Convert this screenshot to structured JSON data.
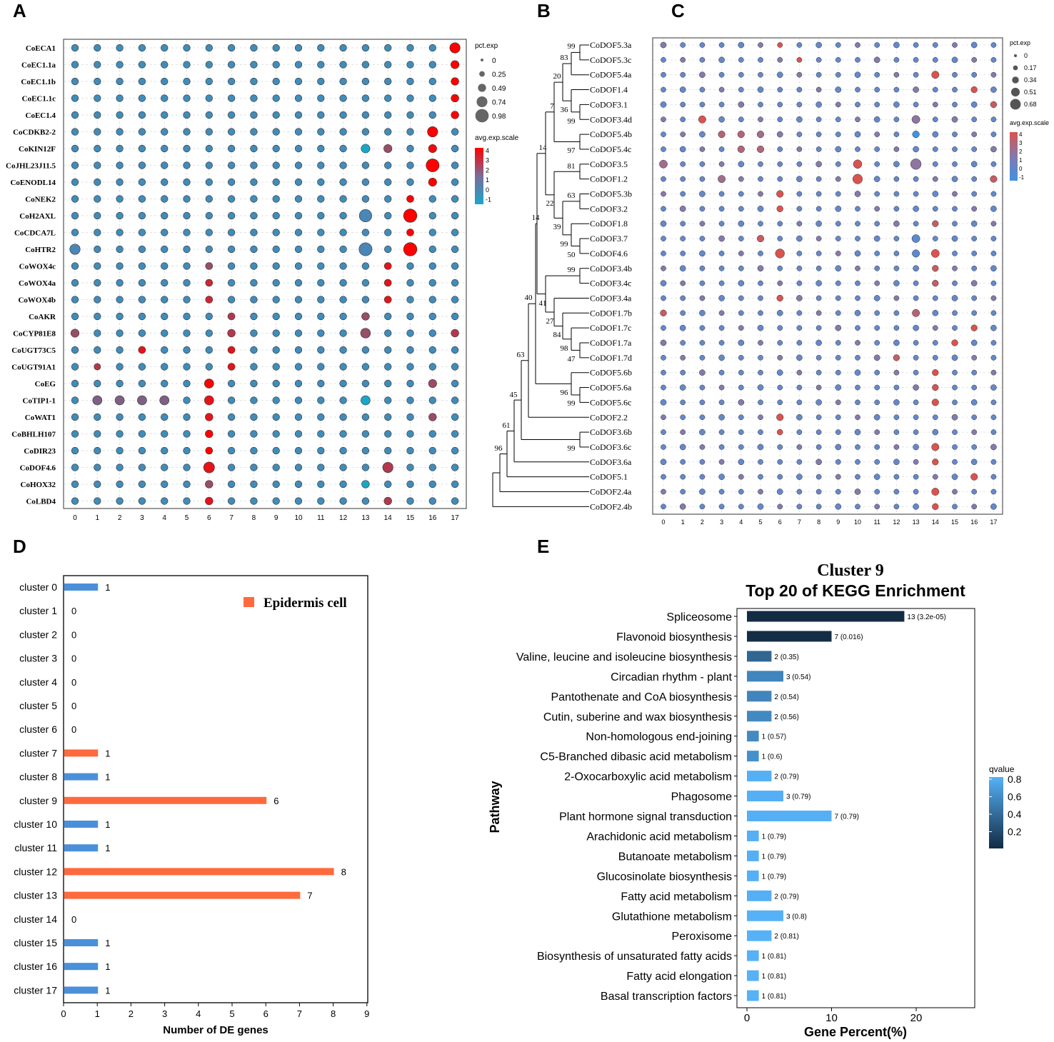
{
  "panel_labels": {
    "a": "A",
    "b": "B",
    "c": "C",
    "d": "D",
    "e": "E"
  },
  "colors": {
    "dot_low": "#1aa6c9",
    "dot_mid": "#4a86b6",
    "dot_high": "#ff0000",
    "c_low": "#3f93e0",
    "c_high": "#d9534f",
    "bar_blue": "#4a90d9",
    "bar_orange": "#ff6a3d",
    "kegg_dark": "#132b43",
    "kegg_light": "#56b1f7"
  },
  "chart_data": [
    {
      "id": "A",
      "type": "dotplot",
      "genes": [
        "CoECA1",
        "CoEC1.1a",
        "CoEC1.1b",
        "CoEC1.1c",
        "CoEC1.4",
        "CoCDKB2-2",
        "CoKIN12F",
        "CoJHL23J11.5",
        "CoENODL14",
        "CoNEK2",
        "CoH2AXL",
        "CoCDCA7L",
        "CoHTR2",
        "CoWOX4c",
        "CoWOX4a",
        "CoWOX4b",
        "CoAKR",
        "CoCYP81E8",
        "CoUGT73C5",
        "CoUGT91A1",
        "CoEG",
        "CoTIP1-1",
        "CoWAT1",
        "CoBHLH107",
        "CoDIR23",
        "CoDOF4.6",
        "CoHOX32",
        "CoLBD4"
      ],
      "clusters": [
        "0",
        "1",
        "2",
        "3",
        "4",
        "5",
        "6",
        "7",
        "8",
        "9",
        "10",
        "11",
        "12",
        "13",
        "14",
        "15",
        "16",
        "17"
      ],
      "highlights": [
        {
          "gene": 0,
          "cluster": 17,
          "exp": 4,
          "pct": 0.7
        },
        {
          "gene": 1,
          "cluster": 17,
          "exp": 4,
          "pct": 0.5
        },
        {
          "gene": 2,
          "cluster": 17,
          "exp": 4,
          "pct": 0.45
        },
        {
          "gene": 3,
          "cluster": 17,
          "exp": 4,
          "pct": 0.45
        },
        {
          "gene": 4,
          "cluster": 17,
          "exp": 4,
          "pct": 0.45
        },
        {
          "gene": 5,
          "cluster": 16,
          "exp": 4,
          "pct": 0.7
        },
        {
          "gene": 6,
          "cluster": 16,
          "exp": 3.8,
          "pct": 0.5
        },
        {
          "gene": 6,
          "cluster": 14,
          "exp": 2,
          "pct": 0.5
        },
        {
          "gene": 6,
          "cluster": 13,
          "exp": -1,
          "pct": 0.55
        },
        {
          "gene": 7,
          "cluster": 16,
          "exp": 4,
          "pct": 0.95
        },
        {
          "gene": 8,
          "cluster": 16,
          "exp": 4,
          "pct": 0.5
        },
        {
          "gene": 9,
          "cluster": 15,
          "exp": 4,
          "pct": 0.4
        },
        {
          "gene": 10,
          "cluster": 15,
          "exp": 4,
          "pct": 0.98
        },
        {
          "gene": 10,
          "cluster": 13,
          "exp": 0.5,
          "pct": 0.9
        },
        {
          "gene": 11,
          "cluster": 15,
          "exp": 4,
          "pct": 0.4
        },
        {
          "gene": 12,
          "cluster": 15,
          "exp": 4,
          "pct": 0.98
        },
        {
          "gene": 12,
          "cluster": 13,
          "exp": 0.5,
          "pct": 0.95
        },
        {
          "gene": 12,
          "cluster": 0,
          "exp": 0.5,
          "pct": 0.7
        },
        {
          "gene": 13,
          "cluster": 14,
          "exp": 3.5,
          "pct": 0.4
        },
        {
          "gene": 13,
          "cluster": 6,
          "exp": 2,
          "pct": 0.4
        },
        {
          "gene": 14,
          "cluster": 14,
          "exp": 3.5,
          "pct": 0.4
        },
        {
          "gene": 14,
          "cluster": 6,
          "exp": 3,
          "pct": 0.4
        },
        {
          "gene": 15,
          "cluster": 14,
          "exp": 3.5,
          "pct": 0.4
        },
        {
          "gene": 15,
          "cluster": 6,
          "exp": 3,
          "pct": 0.4
        },
        {
          "gene": 16,
          "cluster": 7,
          "exp": 2.5,
          "pct": 0.4
        },
        {
          "gene": 16,
          "cluster": 13,
          "exp": 2,
          "pct": 0.45
        },
        {
          "gene": 17,
          "cluster": 0,
          "exp": 2,
          "pct": 0.5
        },
        {
          "gene": 17,
          "cluster": 7,
          "exp": 2.5,
          "pct": 0.45
        },
        {
          "gene": 17,
          "cluster": 13,
          "exp": 2,
          "pct": 0.65
        },
        {
          "gene": 17,
          "cluster": 17,
          "exp": 2.5,
          "pct": 0.45
        },
        {
          "gene": 18,
          "cluster": 3,
          "exp": 3.5,
          "pct": 0.4
        },
        {
          "gene": 18,
          "cluster": 7,
          "exp": 3.5,
          "pct": 0.4
        },
        {
          "gene": 19,
          "cluster": 1,
          "exp": 2.5,
          "pct": 0.35
        },
        {
          "gene": 19,
          "cluster": 7,
          "exp": 3.5,
          "pct": 0.4
        },
        {
          "gene": 20,
          "cluster": 6,
          "exp": 4,
          "pct": 0.6
        },
        {
          "gene": 20,
          "cluster": 16,
          "exp": 2,
          "pct": 0.5
        },
        {
          "gene": 21,
          "cluster": 6,
          "exp": 3.5,
          "pct": 0.6
        },
        {
          "gene": 21,
          "cluster": 1,
          "exp": 1.5,
          "pct": 0.6
        },
        {
          "gene": 21,
          "cluster": 2,
          "exp": 1.5,
          "pct": 0.6
        },
        {
          "gene": 21,
          "cluster": 3,
          "exp": 1.5,
          "pct": 0.6
        },
        {
          "gene": 21,
          "cluster": 4,
          "exp": 1.5,
          "pct": 0.6
        },
        {
          "gene": 21,
          "cluster": 13,
          "exp": -1,
          "pct": 0.6
        },
        {
          "gene": 22,
          "cluster": 6,
          "exp": 3.5,
          "pct": 0.45
        },
        {
          "gene": 22,
          "cluster": 16,
          "exp": 2,
          "pct": 0.45
        },
        {
          "gene": 23,
          "cluster": 6,
          "exp": 4,
          "pct": 0.45
        },
        {
          "gene": 24,
          "cluster": 6,
          "exp": 4,
          "pct": 0.4
        },
        {
          "gene": 25,
          "cluster": 6,
          "exp": 3.5,
          "pct": 0.75
        },
        {
          "gene": 25,
          "cluster": 14,
          "exp": 2.5,
          "pct": 0.7
        },
        {
          "gene": 26,
          "cluster": 6,
          "exp": 2,
          "pct": 0.45
        },
        {
          "gene": 26,
          "cluster": 13,
          "exp": -1,
          "pct": 0.45
        },
        {
          "gene": 27,
          "cluster": 6,
          "exp": 3.5,
          "pct": 0.45
        },
        {
          "gene": 27,
          "cluster": 14,
          "exp": 2.5,
          "pct": 0.45
        }
      ],
      "legend": {
        "size_title": "pct.exp",
        "size_ticks": [
          "0",
          "0.25",
          "0.49",
          "0.74",
          "0.98"
        ],
        "color_title": "avg.exp.scale",
        "color_ticks": [
          "4",
          "3",
          "2",
          "1",
          "0",
          "-1"
        ]
      }
    },
    {
      "id": "B",
      "type": "tree",
      "leaves": [
        "CoDOF5.3a",
        "CoDOF5.3c",
        "CoDOF5.4a",
        "CoDOF1.4",
        "CoDOF3.1",
        "CoDOF3.4d",
        "CoDOF5.4b",
        "CoDOF5.4c",
        "CoDOF3.5",
        "CoDOF1.2",
        "CoDOF5.3b",
        "CoDOF3.2",
        "CoDOF1.8",
        "CoDOF3.7",
        "CoDOF4.6",
        "CoDOF3.4b",
        "CoDOF3.4c",
        "CoDOF3.4a",
        "CoDOF1.7b",
        "CoDOF1.7c",
        "CoDOF1.7a",
        "CoDOF1.7d",
        "CoDOF5.6b",
        "CoDOF5.6a",
        "CoDOF5.6c",
        "CoDOF2.2",
        "CoDOF3.6b",
        "CoDOF3.6c",
        "CoDOF3.6a",
        "CoDOF5.1",
        "CoDOF2.4a",
        "CoDOF2.4b"
      ],
      "bootstrap": [
        "99",
        "83",
        "20",
        "7",
        "36",
        "99",
        "97",
        "14",
        "81",
        "22",
        "63",
        "39",
        "99",
        "50",
        "14",
        "99",
        "41",
        "27",
        "84",
        "98",
        "47",
        "40",
        "96",
        "99",
        "63",
        "45",
        "61",
        "99",
        "96"
      ]
    },
    {
      "id": "C",
      "type": "dotplot",
      "clusters": [
        "0",
        "1",
        "2",
        "3",
        "4",
        "5",
        "6",
        "7",
        "8",
        "9",
        "10",
        "11",
        "12",
        "13",
        "14",
        "15",
        "16",
        "17"
      ],
      "highlights": [
        {
          "row": 0,
          "cluster": 6,
          "exp": 3.5,
          "pct": 0.2
        },
        {
          "row": 1,
          "cluster": 7,
          "exp": 3.5,
          "pct": 0.2
        },
        {
          "row": 2,
          "cluster": 14,
          "exp": 3.5,
          "pct": 0.4
        },
        {
          "row": 3,
          "cluster": 16,
          "exp": 3.5,
          "pct": 0.3
        },
        {
          "row": 4,
          "cluster": 17,
          "exp": 3,
          "pct": 0.3
        },
        {
          "row": 5,
          "cluster": 2,
          "exp": 3.5,
          "pct": 0.4
        },
        {
          "row": 5,
          "cluster": 13,
          "exp": 1.5,
          "pct": 0.45
        },
        {
          "row": 6,
          "cluster": 3,
          "exp": 2.5,
          "pct": 0.35
        },
        {
          "row": 6,
          "cluster": 4,
          "exp": 2.5,
          "pct": 0.35
        },
        {
          "row": 6,
          "cluster": 5,
          "exp": 2,
          "pct": 0.35
        },
        {
          "row": 6,
          "cluster": 13,
          "exp": -1,
          "pct": 0.35
        },
        {
          "row": 7,
          "cluster": 4,
          "exp": 2.5,
          "pct": 0.35
        },
        {
          "row": 7,
          "cluster": 5,
          "exp": 2.5,
          "pct": 0.35
        },
        {
          "row": 8,
          "cluster": 0,
          "exp": 2,
          "pct": 0.45
        },
        {
          "row": 8,
          "cluster": 10,
          "exp": 3.5,
          "pct": 0.5
        },
        {
          "row": 8,
          "cluster": 13,
          "exp": 1.5,
          "pct": 0.68
        },
        {
          "row": 9,
          "cluster": 10,
          "exp": 3.5,
          "pct": 0.6
        },
        {
          "row": 9,
          "cluster": 3,
          "exp": 2,
          "pct": 0.4
        },
        {
          "row": 9,
          "cluster": 17,
          "exp": 3,
          "pct": 0.35
        },
        {
          "row": 10,
          "cluster": 6,
          "exp": 3.5,
          "pct": 0.35
        },
        {
          "row": 11,
          "cluster": 6,
          "exp": 3.5,
          "pct": 0.3
        },
        {
          "row": 12,
          "cluster": 14,
          "exp": 3,
          "pct": 0.3
        },
        {
          "row": 13,
          "cluster": 5,
          "exp": 3,
          "pct": 0.35
        },
        {
          "row": 13,
          "cluster": 13,
          "exp": 0,
          "pct": 0.45
        },
        {
          "row": 14,
          "cluster": 6,
          "exp": 3.5,
          "pct": 0.55
        },
        {
          "row": 14,
          "cluster": 14,
          "exp": 3.5,
          "pct": 0.45
        },
        {
          "row": 14,
          "cluster": 13,
          "exp": 0,
          "pct": 0.4
        },
        {
          "row": 15,
          "cluster": 14,
          "exp": 3,
          "pct": 0.3
        },
        {
          "row": 16,
          "cluster": 14,
          "exp": 3,
          "pct": 0.3
        },
        {
          "row": 17,
          "cluster": 6,
          "exp": 3.5,
          "pct": 0.3
        },
        {
          "row": 18,
          "cluster": 0,
          "exp": 3,
          "pct": 0.3
        },
        {
          "row": 18,
          "cluster": 13,
          "exp": 2.5,
          "pct": 0.4
        },
        {
          "row": 19,
          "cluster": 16,
          "exp": 3.5,
          "pct": 0.3
        },
        {
          "row": 20,
          "cluster": 15,
          "exp": 3.5,
          "pct": 0.3
        },
        {
          "row": 21,
          "cluster": 12,
          "exp": 3,
          "pct": 0.3
        },
        {
          "row": 22,
          "cluster": 14,
          "exp": 3.5,
          "pct": 0.3
        },
        {
          "row": 23,
          "cluster": 14,
          "exp": 3.5,
          "pct": 0.3
        },
        {
          "row": 24,
          "cluster": 14,
          "exp": 3.5,
          "pct": 0.35
        },
        {
          "row": 25,
          "cluster": 6,
          "exp": 3.5,
          "pct": 0.35
        },
        {
          "row": 26,
          "cluster": 6,
          "exp": 3.5,
          "pct": 0.25
        },
        {
          "row": 27,
          "cluster": 14,
          "exp": 3.5,
          "pct": 0.4
        },
        {
          "row": 28,
          "cluster": 14,
          "exp": 3.5,
          "pct": 0.3
        },
        {
          "row": 29,
          "cluster": 16,
          "exp": 3.5,
          "pct": 0.35
        },
        {
          "row": 30,
          "cluster": 14,
          "exp": 3.5,
          "pct": 0.4
        },
        {
          "row": 31,
          "cluster": 14,
          "exp": 3.5,
          "pct": 0.3
        }
      ],
      "legend": {
        "size_title": "pct.exp",
        "size_ticks": [
          "0",
          "0.17",
          "0.34",
          "0.51",
          "0.68"
        ],
        "color_title": "avg.exp.scale",
        "color_ticks": [
          "4",
          "3",
          "2",
          "1",
          "0",
          "-1"
        ]
      }
    },
    {
      "id": "D",
      "type": "bar",
      "orientation": "horizontal",
      "categories": [
        "cluster 0",
        "cluster 1",
        "cluster 2",
        "cluster 3",
        "cluster 4",
        "cluster 5",
        "cluster 6",
        "cluster 7",
        "cluster 8",
        "cluster 9",
        "cluster 10",
        "cluster 11",
        "cluster 12",
        "cluster 13",
        "cluster 14",
        "cluster 15",
        "cluster 16",
        "cluster 17"
      ],
      "values": [
        1,
        0,
        0,
        0,
        0,
        0,
        0,
        1,
        1,
        6,
        1,
        1,
        8,
        7,
        0,
        1,
        1,
        1
      ],
      "value_labels": [
        "1",
        "0",
        "0",
        "0",
        "0",
        "0",
        "0",
        "1",
        "1",
        "6",
        "1",
        "1",
        "8",
        "7",
        "0",
        "1",
        "1",
        "1"
      ],
      "epidermis": [
        false,
        false,
        false,
        false,
        false,
        false,
        false,
        true,
        false,
        true,
        false,
        false,
        true,
        true,
        false,
        false,
        false,
        false
      ],
      "xlabel": "Number of DE genes",
      "xlim": [
        0,
        9
      ],
      "xticks": [
        "0",
        "1",
        "2",
        "3",
        "4",
        "5",
        "6",
        "7",
        "8",
        "9"
      ],
      "legend": "Epidermis cell"
    },
    {
      "id": "E",
      "type": "bar",
      "orientation": "horizontal",
      "title_line1": "Cluster 9",
      "title_line2": "Top 20 of KEGG Enrichment",
      "categories": [
        "Spliceosome",
        "Flavonoid biosynthesis",
        "Valine, leucine and isoleucine biosynthesis",
        "Circadian rhythm - plant",
        "Pantothenate and CoA biosynthesis",
        "Cutin, suberine and wax biosynthesis",
        "Non-homologous end-joining",
        "C5-Branched dibasic acid metabolism",
        "2-Oxocarboxylic acid metabolism",
        "Phagosome",
        "Plant hormone signal transduction",
        "Arachidonic acid metabolism",
        "Butanoate metabolism",
        "Glucosinolate biosynthesis",
        "Fatty acid metabolism",
        "Glutathione metabolism",
        "Peroxisome",
        "Biosynthesis of unsaturated fatty acids",
        "Fatty acid elongation",
        "Basal transcription factors"
      ],
      "counts": [
        13,
        7,
        2,
        3,
        2,
        2,
        1,
        1,
        2,
        3,
        7,
        1,
        1,
        1,
        2,
        3,
        2,
        1,
        1,
        1
      ],
      "values": [
        18.6,
        10.0,
        2.9,
        4.3,
        2.9,
        2.9,
        1.4,
        1.4,
        2.9,
        4.3,
        10.0,
        1.4,
        1.4,
        1.4,
        2.9,
        4.3,
        2.9,
        1.4,
        1.4,
        1.4
      ],
      "qvalues": [
        3.2e-05,
        0.016,
        0.35,
        0.54,
        0.54,
        0.56,
        0.57,
        0.6,
        0.79,
        0.79,
        0.79,
        0.79,
        0.79,
        0.79,
        0.79,
        0.8,
        0.81,
        0.81,
        0.81,
        0.81
      ],
      "bar_labels": [
        "13 (3.2e-05)",
        "7 (0.016)",
        "2 (0.35)",
        "3 (0.54)",
        "2 (0.54)",
        "2 (0.56)",
        "1 (0.57)",
        "1 (0.6)",
        "2 (0.79)",
        "3 (0.79)",
        "7 (0.79)",
        "1 (0.79)",
        "1 (0.79)",
        "1 (0.79)",
        "2 (0.79)",
        "3 (0.8)",
        "2 (0.81)",
        "1 (0.81)",
        "1 (0.81)",
        "1 (0.81)"
      ],
      "xlabel": "Gene Percent(%)",
      "ylabel": "Pathway",
      "xlim": [
        -1,
        27
      ],
      "xticks": [
        0,
        10,
        20
      ],
      "xtick_labels": [
        "0",
        "10",
        "20"
      ],
      "legend_title": "qvalue",
      "legend_ticks": [
        "0.8",
        "0.6",
        "0.4",
        "0.2"
      ]
    }
  ]
}
